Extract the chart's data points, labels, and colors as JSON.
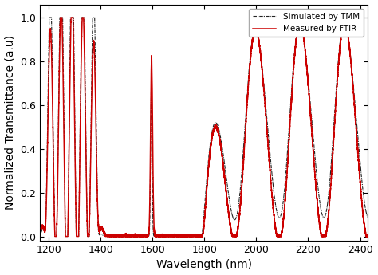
{
  "xlabel": "Wavelength (nm)",
  "ylabel": "Normalized Transmittance (a.u)",
  "xlim": [
    1165,
    2430
  ],
  "ylim": [
    -0.02,
    1.06
  ],
  "xticks": [
    1200,
    1400,
    1600,
    1800,
    2000,
    2200,
    2400
  ],
  "yticks": [
    0.0,
    0.2,
    0.4,
    0.6,
    0.8,
    1.0
  ],
  "tmm_color": "#222222",
  "ftir_color": "#cc0000",
  "tmm_label": "Simulated by TMM",
  "ftir_label": "Measured by FTIR",
  "background": "#ffffff",
  "legend_loc": "upper right",
  "fontsize_label": 10,
  "fontsize_tick": 9,
  "tmm_lw": 0.8,
  "ftir_lw": 1.1
}
